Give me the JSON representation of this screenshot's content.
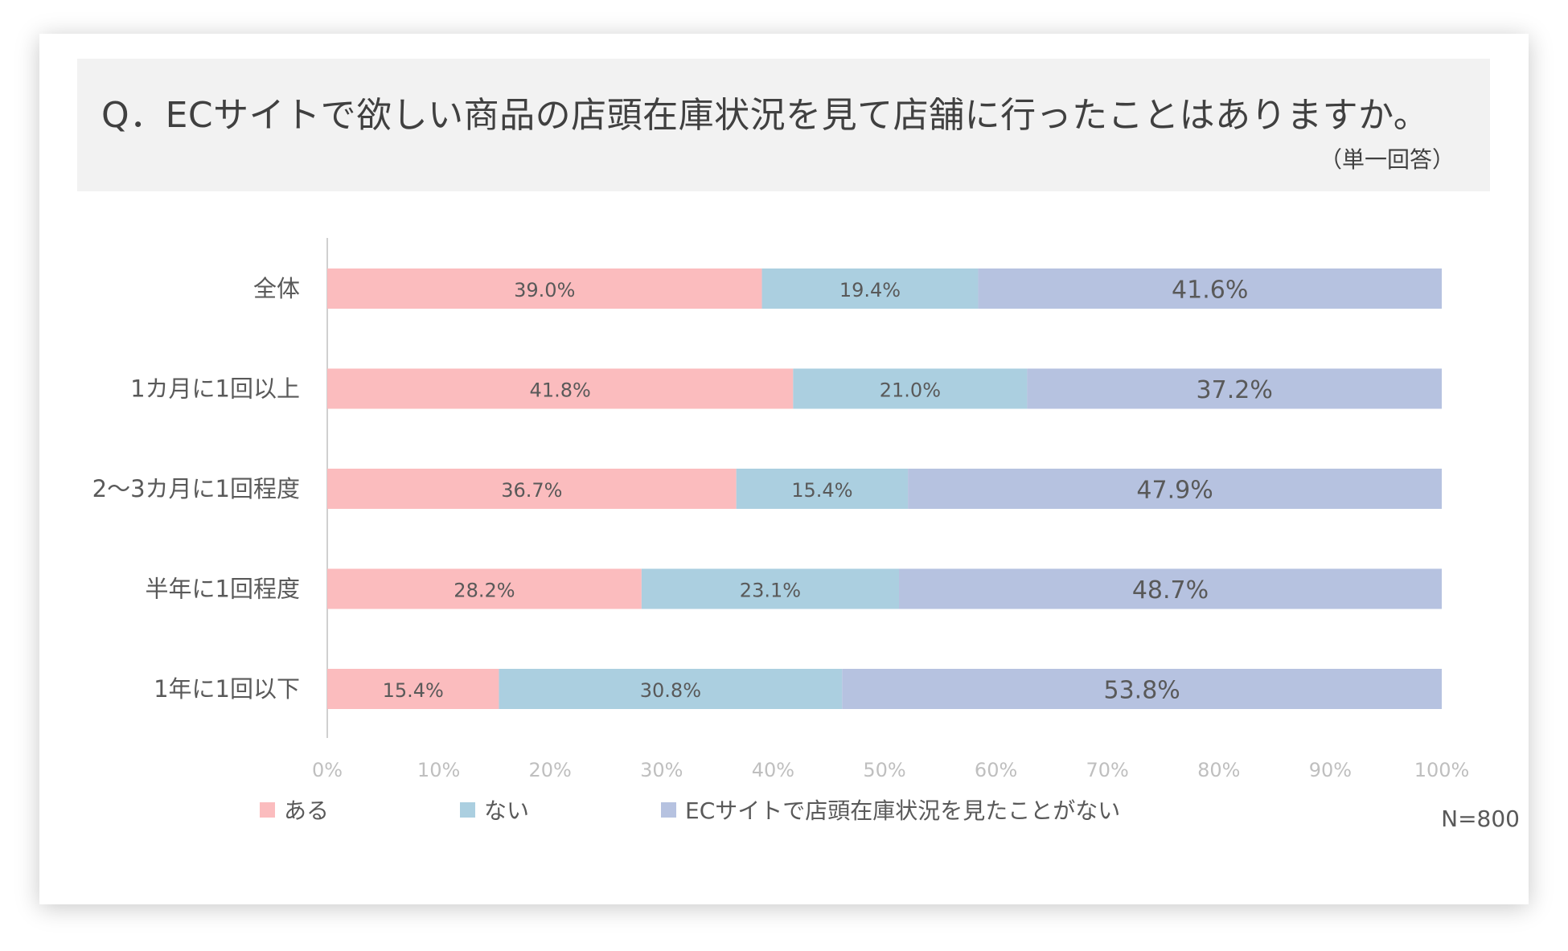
{
  "title": {
    "question": "Q．ECサイトで欲しい商品の店頭在庫状況を見て店舗に行ったことはありますか。",
    "note": "（単一回答）"
  },
  "sample_size": "N=800",
  "colors": {
    "aru": "#fbbcbe",
    "nai": "#abcfe0",
    "not_seen": "#b6c2e0",
    "axis": "#d0d0d0",
    "tick_text": "#bfbfbf",
    "category_text": "#595959",
    "bar_label_text": "#595959"
  },
  "chart_data": {
    "type": "bar",
    "orientation": "horizontal",
    "stacked": true,
    "percent": true,
    "categories": [
      "全体",
      "1カ月に1回以上",
      "2〜3カ月に1回程度",
      "半年に1回程度",
      "1年に1回以下"
    ],
    "series": [
      {
        "name": "ある",
        "values": [
          39.0,
          41.8,
          36.7,
          28.2,
          15.4
        ],
        "labels": [
          "39.0%",
          "41.8%",
          "36.7%",
          "28.2%",
          "15.4%"
        ]
      },
      {
        "name": "ない",
        "values": [
          19.4,
          21.0,
          15.4,
          23.1,
          30.8
        ],
        "labels": [
          "19.4%",
          "21.0%",
          "15.4%",
          "23.1%",
          "30.8%"
        ]
      },
      {
        "name": "ECサイトで店頭在庫状況を見たことがない",
        "values": [
          41.6,
          37.2,
          47.9,
          48.7,
          53.8
        ],
        "labels": [
          "41.6%",
          "37.2%",
          "47.9%",
          "48.7%",
          "53.8%"
        ]
      }
    ],
    "x_ticks": [
      "0%",
      "10%",
      "20%",
      "30%",
      "40%",
      "50%",
      "60%",
      "70%",
      "80%",
      "90%",
      "100%"
    ],
    "xlim": [
      0,
      100
    ],
    "legend": "bottom",
    "grid": false
  }
}
